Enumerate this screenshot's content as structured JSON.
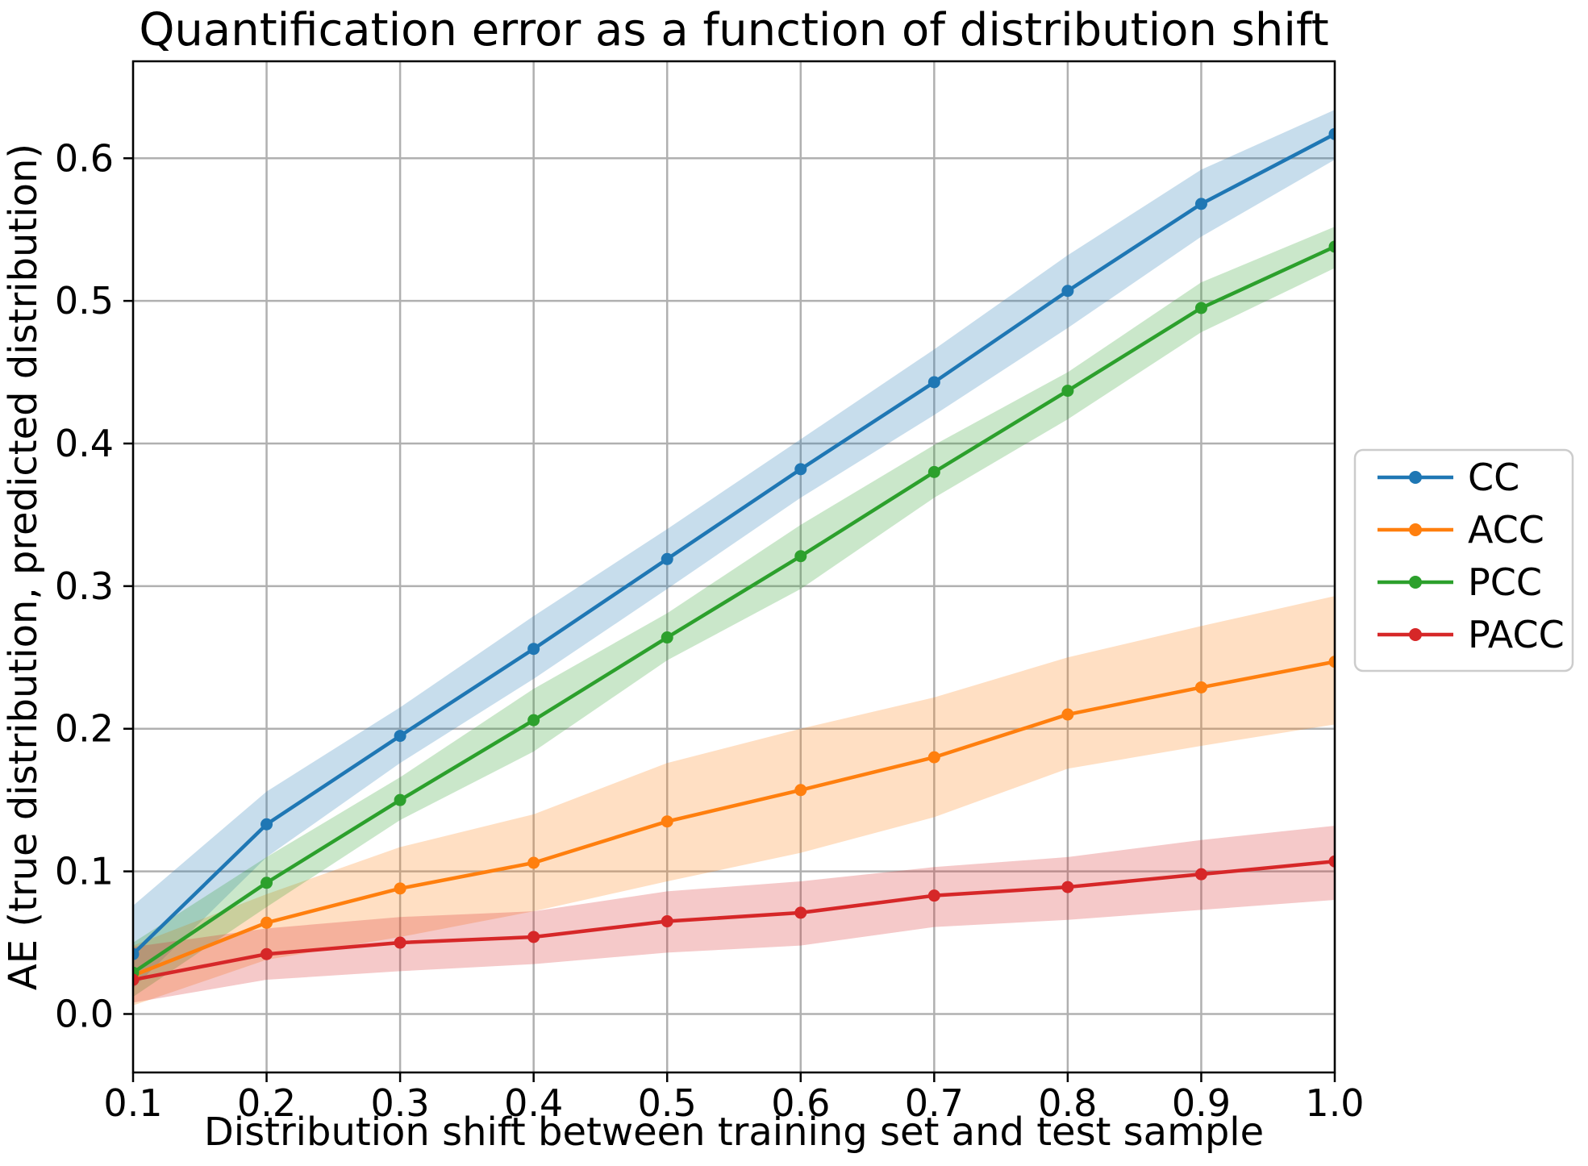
{
  "figure": {
    "background_color": "#ffffff",
    "grid_color": "#b0b0b0",
    "spine_color": "#000000",
    "legend_border_color": "#cccccc"
  },
  "chart_data": {
    "type": "line",
    "title": "Quantification error as a function of distribution shift",
    "xlabel": "Distribution shift between training set and test sample",
    "ylabel": "AE (true distribution, predicted distribution)",
    "grid": true,
    "legend_position": "right of axes, outside plot",
    "xlim": [
      0.1,
      1.0
    ],
    "ylim": [
      -0.041,
      0.668
    ],
    "x": [
      0.1,
      0.2,
      0.3,
      0.4,
      0.5,
      0.6,
      0.7,
      0.8,
      0.9,
      1.0
    ],
    "x_ticks": [
      0.1,
      0.2,
      0.3,
      0.4,
      0.5,
      0.6,
      0.7,
      0.8,
      0.9,
      1.0
    ],
    "x_tick_labels": [
      "0.1",
      "0.2",
      "0.3",
      "0.4",
      "0.5",
      "0.6",
      "0.7",
      "0.8",
      "0.9",
      "1.0"
    ],
    "y_ticks": [
      0.0,
      0.1,
      0.2,
      0.3,
      0.4,
      0.5,
      0.6
    ],
    "y_tick_labels": [
      "0.0",
      "0.1",
      "0.2",
      "0.3",
      "0.4",
      "0.5",
      "0.6"
    ],
    "band_alpha": 0.25,
    "series": [
      {
        "name": "CC",
        "color": "#1f77b4",
        "values": [
          0.042,
          0.133,
          0.195,
          0.256,
          0.319,
          0.382,
          0.443,
          0.507,
          0.568,
          0.617
        ],
        "band_lower": [
          0.018,
          0.11,
          0.176,
          0.235,
          0.298,
          0.362,
          0.42,
          0.481,
          0.545,
          0.599
        ],
        "band_upper": [
          0.076,
          0.156,
          0.215,
          0.279,
          0.34,
          0.403,
          0.466,
          0.532,
          0.592,
          0.634
        ]
      },
      {
        "name": "ACC",
        "color": "#ff7f0e",
        "values": [
          0.027,
          0.064,
          0.088,
          0.106,
          0.135,
          0.157,
          0.18,
          0.21,
          0.229,
          0.247
        ],
        "band_lower": [
          0.006,
          0.038,
          0.054,
          0.072,
          0.093,
          0.113,
          0.138,
          0.172,
          0.188,
          0.203
        ],
        "band_upper": [
          0.048,
          0.084,
          0.117,
          0.14,
          0.176,
          0.2,
          0.222,
          0.25,
          0.272,
          0.293
        ]
      },
      {
        "name": "PCC",
        "color": "#2ca02c",
        "values": [
          0.029,
          0.092,
          0.15,
          0.206,
          0.264,
          0.321,
          0.38,
          0.437,
          0.495,
          0.538
        ],
        "band_lower": [
          0.012,
          0.075,
          0.136,
          0.184,
          0.248,
          0.298,
          0.362,
          0.417,
          0.478,
          0.523
        ],
        "band_upper": [
          0.05,
          0.11,
          0.166,
          0.228,
          0.281,
          0.343,
          0.399,
          0.45,
          0.513,
          0.552
        ]
      },
      {
        "name": "PACC",
        "color": "#d62728",
        "values": [
          0.024,
          0.042,
          0.05,
          0.054,
          0.065,
          0.071,
          0.083,
          0.089,
          0.098,
          0.107
        ],
        "band_lower": [
          0.008,
          0.024,
          0.03,
          0.035,
          0.043,
          0.048,
          0.061,
          0.066,
          0.073,
          0.08
        ],
        "band_upper": [
          0.047,
          0.06,
          0.068,
          0.072,
          0.086,
          0.093,
          0.103,
          0.11,
          0.122,
          0.132
        ]
      }
    ]
  }
}
